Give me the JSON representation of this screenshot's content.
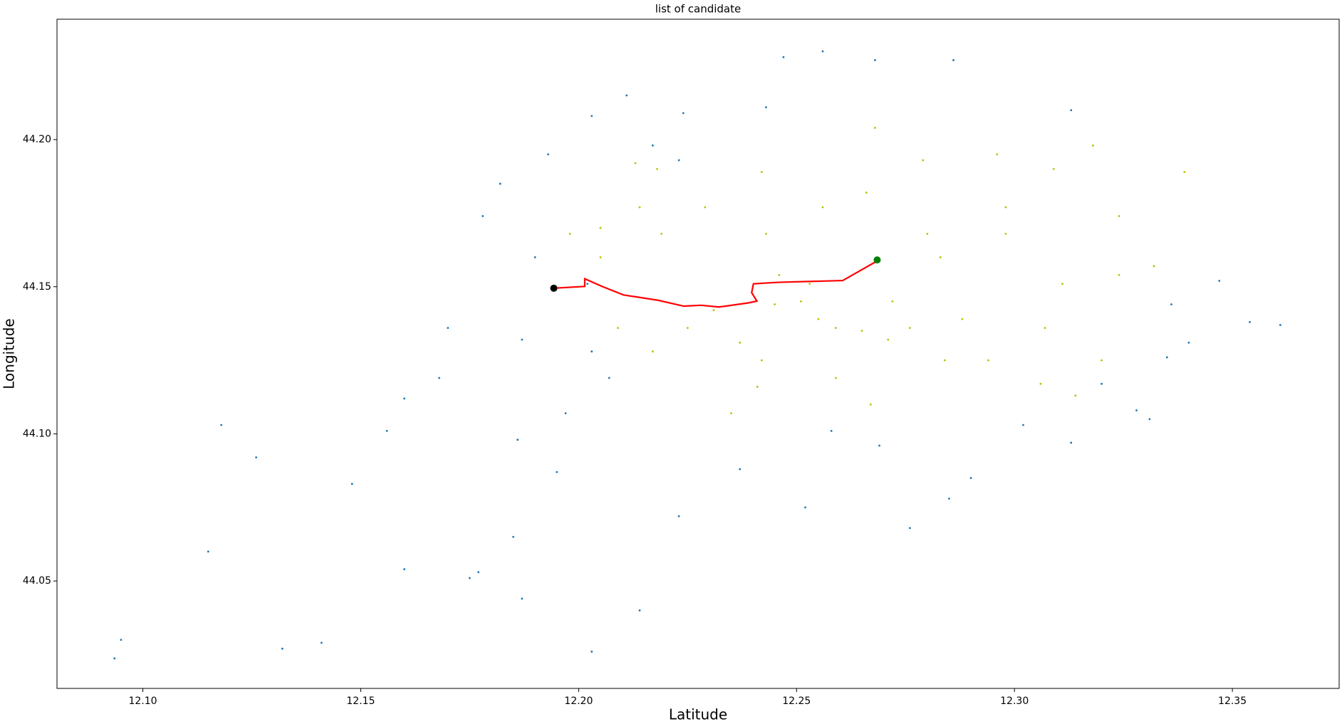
{
  "chart_data": {
    "type": "scatter",
    "title": "list of candidate",
    "xlabel": "Latitude",
    "ylabel": "Longitude",
    "xlim": [
      12.0803,
      12.3745
    ],
    "ylim": [
      44.0135,
      44.2409
    ],
    "xticks": [
      {
        "value": 12.1,
        "label": "12.10"
      },
      12.15,
      {
        "value": 12.2,
        "label": "12.20"
      },
      12.25,
      {
        "value": 12.3,
        "label": "12.30"
      },
      12.35
    ],
    "yticks": [
      44.05,
      {
        "value": 44.1,
        "label": "44.10"
      },
      44.15,
      {
        "value": 44.2,
        "label": "44.20"
      }
    ],
    "series": [
      {
        "kind": "scatter",
        "color": "#1f77b4",
        "x": [
          12.0935,
          12.095,
          12.118,
          12.115,
          12.126,
          12.132,
          12.141,
          12.148,
          12.156,
          12.16,
          12.168,
          12.177,
          12.175,
          12.185,
          12.187,
          12.195,
          12.197,
          12.187,
          12.19,
          12.178,
          12.182,
          12.193,
          12.203,
          12.211,
          12.217,
          12.223,
          12.224,
          12.203,
          12.214,
          12.223,
          12.237,
          12.252,
          12.258,
          12.269,
          12.276,
          12.285,
          12.29,
          12.302,
          12.313,
          12.32,
          12.328,
          12.331,
          12.335,
          12.34,
          12.347,
          12.354,
          12.361,
          12.286,
          12.268,
          12.256,
          12.247,
          12.243,
          12.313,
          12.336,
          12.202,
          12.203,
          12.207,
          12.17,
          12.16,
          12.186
        ],
        "y": [
          44.0237,
          44.03,
          44.103,
          44.06,
          44.092,
          44.027,
          44.029,
          44.083,
          44.101,
          44.054,
          44.119,
          44.053,
          44.051,
          44.065,
          44.044,
          44.087,
          44.107,
          44.132,
          44.16,
          44.174,
          44.185,
          44.195,
          44.208,
          44.215,
          44.198,
          44.193,
          44.209,
          44.026,
          44.04,
          44.072,
          44.088,
          44.075,
          44.101,
          44.096,
          44.068,
          44.078,
          44.085,
          44.103,
          44.097,
          44.117,
          44.108,
          44.105,
          44.126,
          44.131,
          44.152,
          44.138,
          44.137,
          44.227,
          44.227,
          44.23,
          44.228,
          44.211,
          44.21,
          44.144,
          44.151,
          44.128,
          44.119,
          44.136,
          44.112,
          44.098
        ]
      },
      {
        "kind": "scatter",
        "color": "#bfbf00",
        "x": [
          12.213,
          12.218,
          12.214,
          12.219,
          12.205,
          12.209,
          12.217,
          12.225,
          12.231,
          12.237,
          12.242,
          12.242,
          12.243,
          12.246,
          12.251,
          12.255,
          12.259,
          12.265,
          12.271,
          12.276,
          12.28,
          12.283,
          12.288,
          12.279,
          12.296,
          12.298,
          12.298,
          12.309,
          12.318,
          12.324,
          12.332,
          12.339,
          12.307,
          12.306,
          12.314,
          12.32,
          12.294,
          12.284,
          12.267,
          12.259,
          12.235,
          12.241,
          12.268,
          12.266,
          12.256,
          12.229,
          12.198,
          12.205,
          12.311,
          12.324,
          12.253,
          12.245,
          12.272
        ],
        "y": [
          44.192,
          44.19,
          44.177,
          44.168,
          44.16,
          44.136,
          44.128,
          44.136,
          44.142,
          44.131,
          44.125,
          44.189,
          44.168,
          44.154,
          44.145,
          44.139,
          44.136,
          44.135,
          44.132,
          44.136,
          44.168,
          44.16,
          44.139,
          44.193,
          44.195,
          44.177,
          44.168,
          44.19,
          44.198,
          44.174,
          44.157,
          44.189,
          44.136,
          44.117,
          44.113,
          44.125,
          44.125,
          44.125,
          44.11,
          44.119,
          44.107,
          44.116,
          44.204,
          44.182,
          44.177,
          44.177,
          44.168,
          44.17,
          44.151,
          44.154,
          44.151,
          44.144,
          44.145
        ]
      },
      {
        "kind": "line",
        "color": "#ff0000",
        "x": [
          12.1943,
          12.2014,
          12.2014,
          12.2054,
          12.2103,
          12.2182,
          12.2241,
          12.2281,
          12.2322,
          12.2389,
          12.2409,
          12.2397,
          12.2401,
          12.2458,
          12.2606,
          12.2689
        ],
        "y": [
          44.1495,
          44.1501,
          44.1527,
          44.1501,
          44.1472,
          44.1454,
          44.1434,
          44.1437,
          44.1431,
          44.1445,
          44.1451,
          44.148,
          44.151,
          44.1515,
          44.1521,
          44.1591
        ]
      },
      {
        "kind": "marker",
        "color": "#000000",
        "x": [
          12.1943
        ],
        "y": [
          44.1495
        ]
      },
      {
        "kind": "marker",
        "color": "#008000",
        "x": [
          12.2685
        ],
        "y": [
          44.1591
        ]
      }
    ]
  }
}
